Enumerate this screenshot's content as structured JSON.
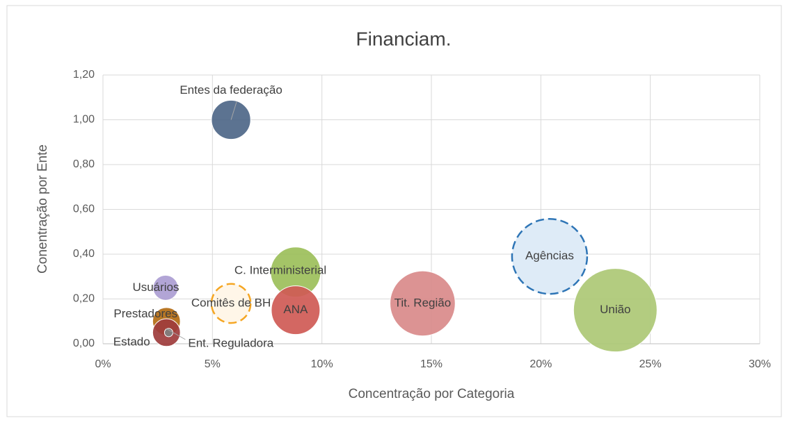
{
  "chart_data": {
    "type": "bubble",
    "title": "Financiam.",
    "x_label": "Concentração por Categoria",
    "y_label": "Conentração por Ente",
    "xlim": [
      0,
      30
    ],
    "xticks": [
      {
        "value": 0,
        "label": "0%"
      },
      {
        "value": 5,
        "label": "5%"
      },
      {
        "value": 10,
        "label": "10%"
      },
      {
        "value": 15,
        "label": "15%"
      },
      {
        "value": 20,
        "label": "20%"
      },
      {
        "value": 25,
        "label": "25%"
      },
      {
        "value": 30,
        "label": "30%"
      }
    ],
    "ylim": [
      0,
      1.2
    ],
    "yticks": [
      {
        "value": 0,
        "label": "0,00"
      },
      {
        "value": 0.2,
        "label": "0,20"
      },
      {
        "value": 0.4,
        "label": "0,40"
      },
      {
        "value": 0.6,
        "label": "0,60"
      },
      {
        "value": 0.8,
        "label": "0,80"
      },
      {
        "value": 1.0,
        "label": "1,00"
      },
      {
        "value": 1.2,
        "label": "1,20"
      }
    ],
    "grid": true,
    "series": [
      {
        "name": "Entes da federação",
        "color": "#4e6788",
        "x": [
          5.85
        ],
        "values": [
          1.0
        ],
        "sizes": [
          22
        ]
      },
      {
        "name": "Usuários",
        "color": "#ab9dd2",
        "x": [
          2.86
        ],
        "values": [
          0.25
        ],
        "sizes": [
          9
        ]
      },
      {
        "name": "Comitês de BH",
        "color": "#f5a623",
        "fill": "#fff6e8",
        "dashed": true,
        "x": [
          5.85
        ],
        "values": [
          0.18
        ],
        "sizes": [
          22
        ]
      },
      {
        "name": "C. Interministerial",
        "color": "#9cbf5a",
        "x": [
          8.8
        ],
        "values": [
          0.32
        ],
        "sizes": [
          36
        ]
      },
      {
        "name": "ANA",
        "color": "#cf5a55",
        "x": [
          8.8
        ],
        "values": [
          0.15
        ],
        "sizes": [
          34
        ]
      },
      {
        "name": "Tit. Região",
        "color": "#d98a8a",
        "x": [
          14.6
        ],
        "values": [
          0.18
        ],
        "sizes": [
          61
        ]
      },
      {
        "name": "Agências",
        "color": "#2e75b6",
        "fill": "#deebf7",
        "dashed": true,
        "x": [
          20.4
        ],
        "values": [
          0.39
        ],
        "sizes": [
          81
        ]
      },
      {
        "name": "União",
        "color": "#adc875",
        "x": [
          23.4
        ],
        "values": [
          0.15
        ],
        "sizes": [
          100
        ]
      },
      {
        "name": "Prestadores",
        "color": "#b36b12",
        "x": [
          2.9
        ],
        "values": [
          0.1
        ],
        "sizes": [
          11
        ]
      },
      {
        "name": "Estado",
        "color": "#9e3c3c",
        "x": [
          2.9
        ],
        "values": [
          0.05
        ],
        "sizes": [
          11
        ]
      },
      {
        "name": "Ent. Reguladora",
        "color": "#808080",
        "x": [
          3.0
        ],
        "values": [
          0.05
        ],
        "sizes": [
          1
        ]
      }
    ]
  }
}
